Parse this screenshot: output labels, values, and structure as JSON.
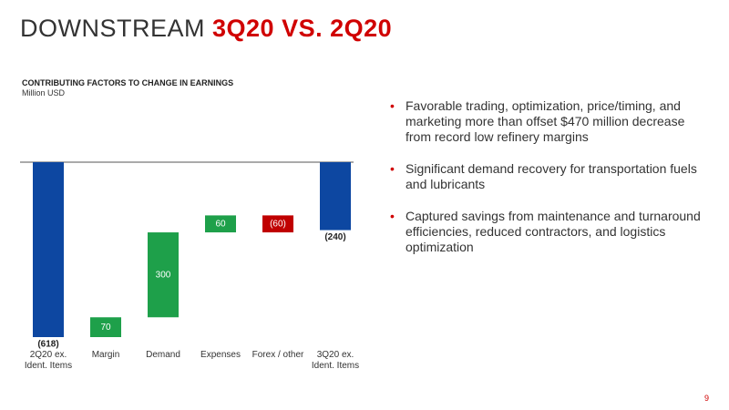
{
  "title": {
    "main": "DOWNSTREAM",
    "highlight": "3Q20 VS. 2Q20"
  },
  "chart_data": {
    "type": "waterfall",
    "title": "CONTRIBUTING FACTORS TO CHANGE IN EARNINGS",
    "subtitle": "Million USD",
    "categories": [
      "2Q20 ex. Ident. Items",
      "Margin",
      "Demand",
      "Expenses",
      "Forex / other",
      "3Q20 ex. Ident. Items"
    ],
    "values": [
      -618,
      70,
      300,
      60,
      -60,
      -240
    ],
    "value_labels": [
      "(618)",
      "70",
      "300",
      "60",
      "(60)",
      "(240)"
    ],
    "colors": [
      "#0d47a1",
      "#1ea04a",
      "#1ea04a",
      "#1ea04a",
      "#c00000",
      "#0d47a1"
    ]
  },
  "bullets": [
    "Favorable trading, optimization, price/timing, and marketing more than offset $470 million decrease from record low refinery margins",
    "Significant demand recovery for transportation fuels and lubricants",
    "Captured savings from maintenance and turnaround efficiencies, reduced contractors, and logistics optimization"
  ],
  "page_number": "9"
}
